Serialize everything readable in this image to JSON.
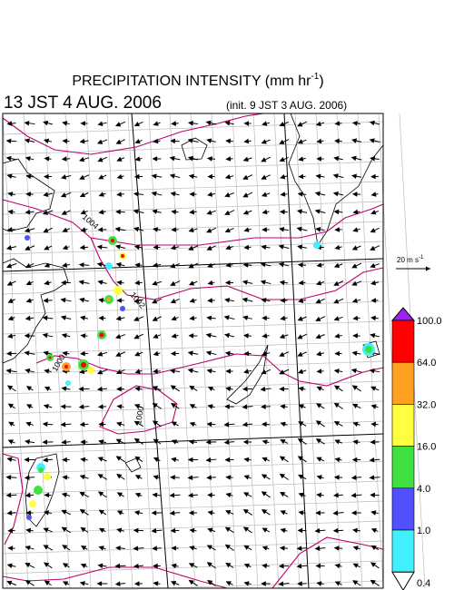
{
  "header": {
    "title": "PRECIPITATION INTENSITY (mm hr",
    "title_exponent": "-1",
    "title_close": ")",
    "valid_time": "13 JST 4 AUG. 2006",
    "init_time": "(init. 9 JST 3 AUG. 2006)"
  },
  "wind_reference": {
    "label": "20 m s",
    "exponent": "-1"
  },
  "colorbar": {
    "over_color": "#a020f0",
    "under_color": "#ffffff",
    "segments": [
      "#ff0000",
      "#ffa020",
      "#ffff40",
      "#40e040",
      "#5050ff",
      "#40f0ff"
    ],
    "labels": [
      "100.0",
      "64.0",
      "32.0",
      "16.0",
      "4.0",
      "1.0",
      "0.4"
    ]
  },
  "isobar_labels": [
    "1004",
    "1002",
    "1000",
    "1000"
  ]
}
